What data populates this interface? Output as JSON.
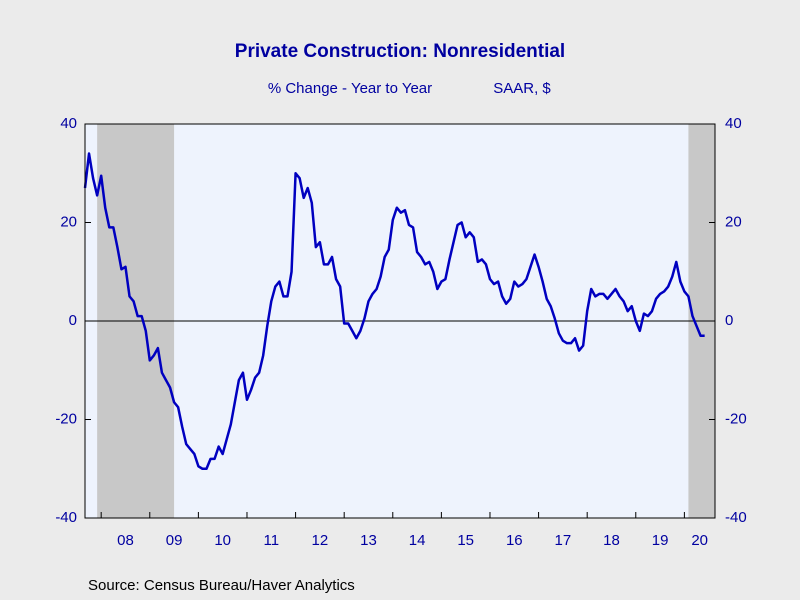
{
  "chart_data": {
    "type": "line",
    "title": "Private Construction: Nonresidential",
    "subtitle": "% Change - Year to Year",
    "subtitle_right": "SAAR, $",
    "source": "Source:  Census Bureau/Haver Analytics",
    "color": "#0000c0",
    "shade_color": "#c8c8c8",
    "recessions": [
      [
        2007.917,
        2009.5
      ],
      [
        2020.083,
        2020.63
      ]
    ],
    "xlim": [
      2007.667,
      2020.63
    ],
    "ylim": [
      -40,
      40
    ],
    "yticks": [
      -40,
      -20,
      0,
      20,
      40
    ],
    "xticks": [
      {
        "value": 2008,
        "label": "08"
      },
      {
        "value": 2009,
        "label": "09"
      },
      {
        "value": 2010,
        "label": "10"
      },
      {
        "value": 2011,
        "label": "11"
      },
      {
        "value": 2012,
        "label": "12"
      },
      {
        "value": 2013,
        "label": "13"
      },
      {
        "value": 2014,
        "label": "14"
      },
      {
        "value": 2015,
        "label": "15"
      },
      {
        "value": 2016,
        "label": "16"
      },
      {
        "value": 2017,
        "label": "17"
      },
      {
        "value": 2018,
        "label": "18"
      },
      {
        "value": 2019,
        "label": "19"
      },
      {
        "value": 2020,
        "label": "20"
      }
    ],
    "x": [
      2007.667,
      2007.75,
      2007.833,
      2007.917,
      2008,
      2008.083,
      2008.167,
      2008.25,
      2008.333,
      2008.417,
      2008.5,
      2008.583,
      2008.667,
      2008.75,
      2008.833,
      2008.917,
      2009,
      2009.083,
      2009.167,
      2009.25,
      2009.333,
      2009.417,
      2009.5,
      2009.583,
      2009.667,
      2009.75,
      2009.833,
      2009.917,
      2010,
      2010.083,
      2010.167,
      2010.25,
      2010.333,
      2010.417,
      2010.5,
      2010.583,
      2010.667,
      2010.75,
      2010.833,
      2010.917,
      2011,
      2011.083,
      2011.167,
      2011.25,
      2011.333,
      2011.417,
      2011.5,
      2011.583,
      2011.667,
      2011.75,
      2011.833,
      2011.917,
      2012,
      2012.083,
      2012.167,
      2012.25,
      2012.333,
      2012.417,
      2012.5,
      2012.583,
      2012.667,
      2012.75,
      2012.833,
      2012.917,
      2013,
      2013.083,
      2013.167,
      2013.25,
      2013.333,
      2013.417,
      2013.5,
      2013.583,
      2013.667,
      2013.75,
      2013.833,
      2013.917,
      2014,
      2014.083,
      2014.167,
      2014.25,
      2014.333,
      2014.417,
      2014.5,
      2014.583,
      2014.667,
      2014.75,
      2014.833,
      2014.917,
      2015,
      2015.083,
      2015.167,
      2015.25,
      2015.333,
      2015.417,
      2015.5,
      2015.583,
      2015.667,
      2015.75,
      2015.833,
      2015.917,
      2016,
      2016.083,
      2016.167,
      2016.25,
      2016.333,
      2016.417,
      2016.5,
      2016.583,
      2016.667,
      2016.75,
      2016.833,
      2016.917,
      2017,
      2017.083,
      2017.167,
      2017.25,
      2017.333,
      2017.417,
      2017.5,
      2017.583,
      2017.667,
      2017.75,
      2017.833,
      2017.917,
      2018,
      2018.083,
      2018.167,
      2018.25,
      2018.333,
      2018.417,
      2018.5,
      2018.583,
      2018.667,
      2018.75,
      2018.833,
      2018.917,
      2019,
      2019.083,
      2019.167,
      2019.25,
      2019.333,
      2019.417,
      2019.5,
      2019.583,
      2019.667,
      2019.75,
      2019.833,
      2019.917,
      2020,
      2020.083,
      2020.167,
      2020.25,
      2020.333,
      2020.417
    ],
    "values": [
      27,
      34,
      29,
      25.5,
      29.5,
      23,
      19,
      19,
      15,
      10.5,
      11,
      5,
      4,
      1,
      1,
      -2,
      -8,
      -7,
      -5.5,
      -10.5,
      -12,
      -13.5,
      -16.5,
      -17.5,
      -21.5,
      -25,
      -26,
      -27,
      -29.5,
      -30,
      -30,
      -28,
      -28,
      -25.5,
      -27,
      -24,
      -21,
      -16.5,
      -12,
      -10.5,
      -16,
      -14,
      -11.5,
      -10.5,
      -7,
      -1,
      4,
      7,
      8,
      5,
      5,
      10,
      30,
      29,
      25,
      27,
      24,
      15,
      16,
      11.5,
      11.5,
      13,
      8.5,
      7,
      -0.5,
      -0.5,
      -2,
      -3.5,
      -2,
      0.5,
      4,
      5.5,
      6.5,
      9,
      13,
      14.5,
      20.5,
      23,
      22,
      22.5,
      19.5,
      19,
      14,
      13,
      11.5,
      12,
      10,
      6.5,
      8,
      8.5,
      12.5,
      16,
      19.5,
      20,
      17,
      18,
      17,
      12,
      12.5,
      11.5,
      8.5,
      7.5,
      8,
      5,
      3.5,
      4.5,
      8,
      7,
      7.5,
      8.5,
      11,
      13.5,
      11,
      8,
      4.5,
      3,
      0.5,
      -2.5,
      -4,
      -4.5,
      -4.5,
      -3.5,
      -6,
      -5,
      2,
      6.5,
      5,
      5.5,
      5.5,
      4.5,
      5.5,
      6.5,
      5,
      4,
      2,
      3,
      0,
      -2,
      1.5,
      1,
      2,
      4.5,
      5.5,
      6,
      7,
      9,
      12,
      8,
      6,
      5,
      1,
      -1,
      -3,
      -3
    ]
  }
}
